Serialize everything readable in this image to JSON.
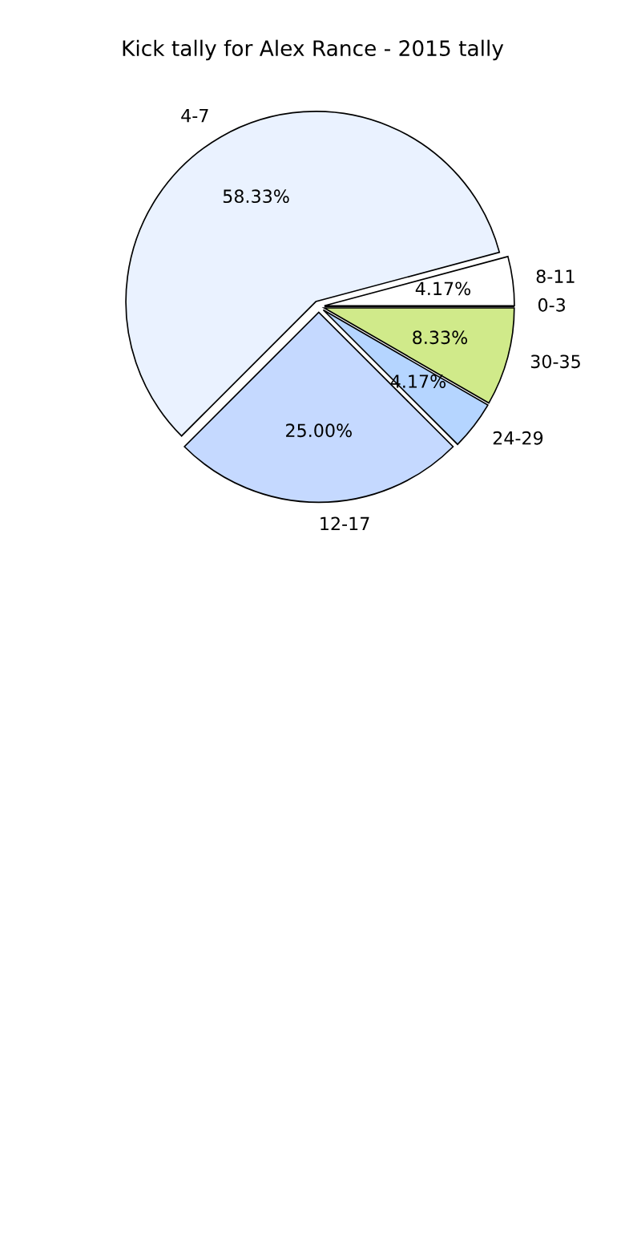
{
  "chart_data": {
    "type": "pie",
    "title": "Kick tally for Alex Rance - 2015 tally",
    "categories": [
      "0-3",
      "8-11",
      "4-7",
      "12-17",
      "24-29",
      "30-35"
    ],
    "values": [
      0,
      4.17,
      58.33,
      25.0,
      4.17,
      8.33
    ],
    "colors": [
      "#ffffff",
      "#ffffff",
      "#eaf2ff",
      "#c5d9ff",
      "#b5d5ff",
      "#d0ea8a"
    ],
    "value_labels": [
      null,
      "4.17%",
      "58.33%",
      "25.00%",
      "4.17%",
      "8.33%"
    ]
  }
}
